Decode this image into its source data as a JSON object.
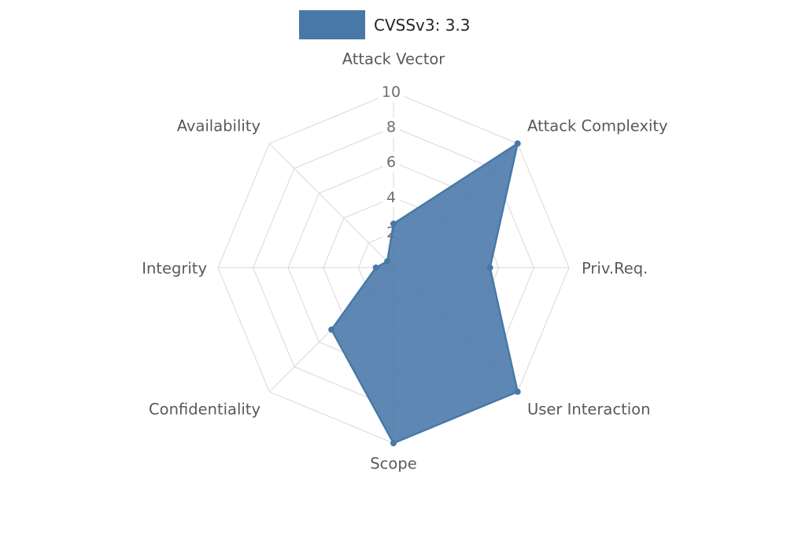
{
  "legend": {
    "series_label": "CVSSv3: 3.3",
    "swatch_color": "#4878a8"
  },
  "chart_data": {
    "type": "radar",
    "title": "CVSSv3: 3.3",
    "axes": [
      "Attack Vector",
      "Attack Complexity",
      "Priv.Req.",
      "User Interaction",
      "Scope",
      "Confidentiality",
      "Integrity",
      "Availability"
    ],
    "series": [
      {
        "name": "CVSSv3: 3.3",
        "values": [
          2.5,
          10,
          5.5,
          10,
          10,
          5,
          1,
          0.5
        ],
        "color": "#4878a8",
        "fill_opacity": 0.88
      }
    ],
    "radial_ticks": [
      2,
      4,
      6,
      8,
      10
    ],
    "rlim": [
      0,
      10
    ],
    "grid": true,
    "grid_color": "#d9d9d9",
    "axis_label_color": "#595959",
    "tick_label_color": "#6e6e6e",
    "tick_box_color": "#ffffff",
    "legend_position": "top-center"
  }
}
